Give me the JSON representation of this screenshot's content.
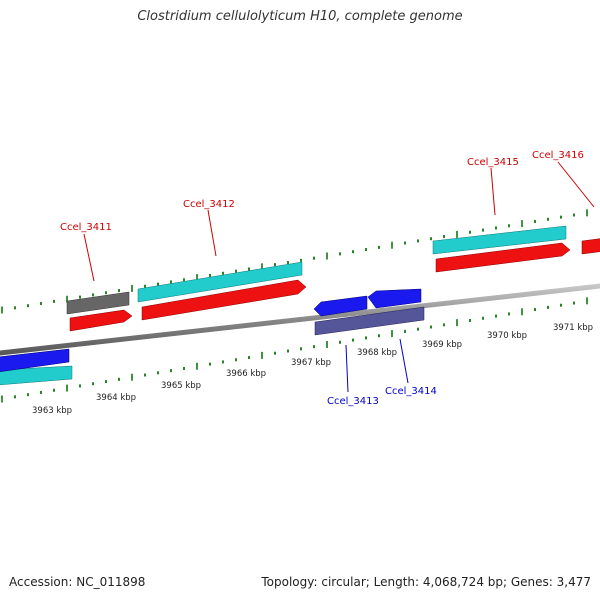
{
  "title": "Clostridium cellulolyticum H10, complete genome",
  "footer": {
    "accession": "Accession: NC_011898",
    "stats": "Topology: circular; Length: 4,068,724 bp; Genes: 3,477"
  },
  "axis_labels": [
    "3963 kbp",
    "3964 kbp",
    "3965 kbp",
    "3966 kbp",
    "3967 kbp",
    "3968 kbp",
    "3969 kbp",
    "3970 kbp",
    "3971 kbp"
  ],
  "gene_labels": {
    "top": [
      "Ccel_3411",
      "Ccel_3412",
      "Ccel_3415",
      "Ccel_3416"
    ],
    "bottom": [
      "Ccel_3413",
      "Ccel_3414"
    ]
  },
  "colors": {
    "forward_gene": "#ee1111",
    "forward_cds": "#22cccc",
    "reverse_gene": "#1a1aee",
    "reverse_cds": "#555599",
    "pseudo": "#666666",
    "tick": "#117711",
    "top_label": "#cc0000",
    "bottom_label": "#0000cc",
    "backbone": "#999999"
  }
}
